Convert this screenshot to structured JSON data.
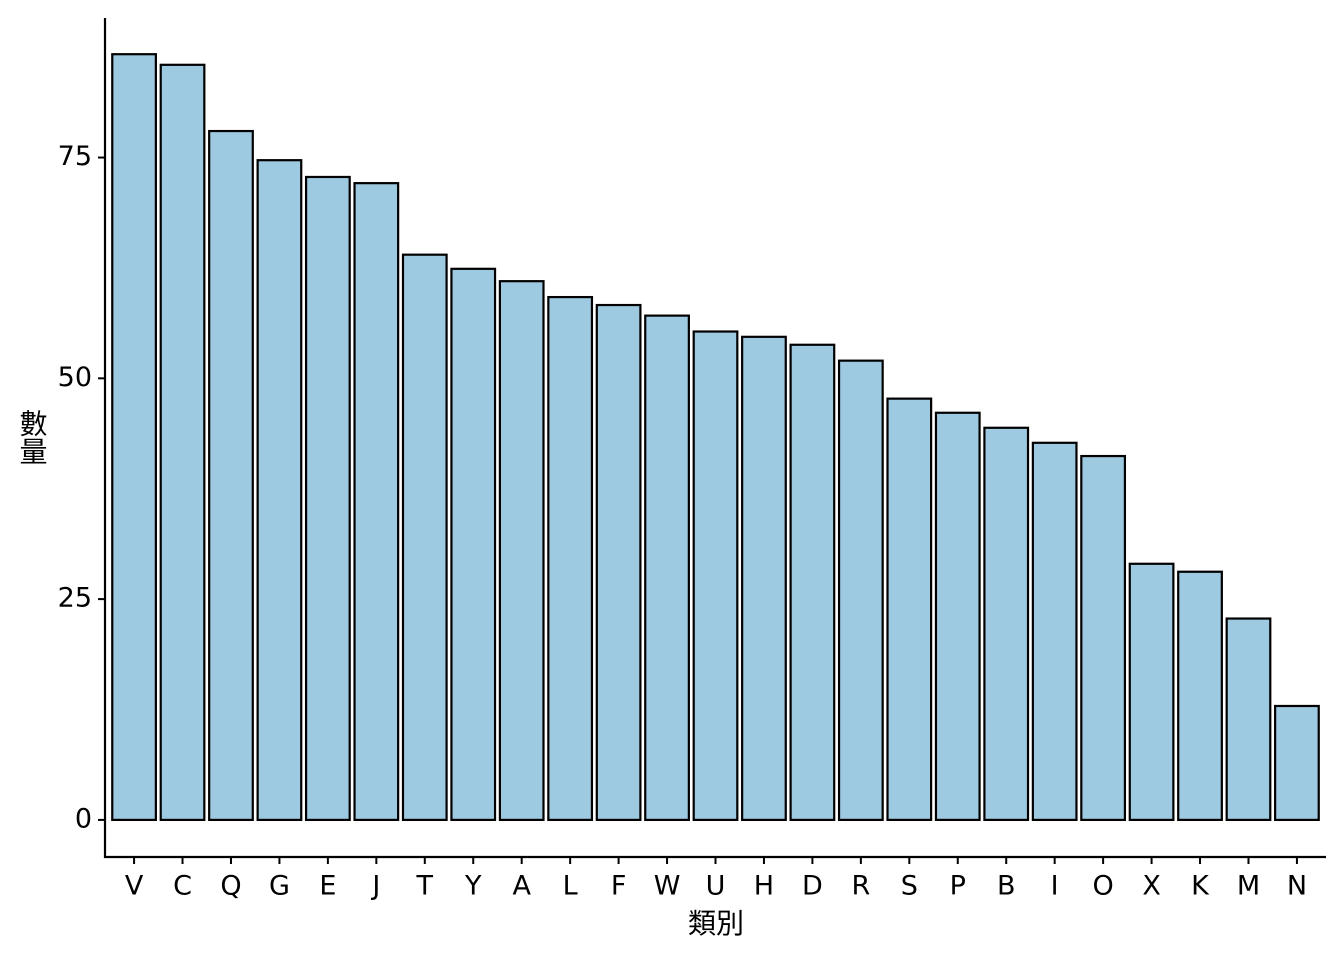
{
  "chart_data": {
    "type": "bar",
    "x_label": "類別",
    "y_label": "數量",
    "categories": [
      "V",
      "C",
      "Q",
      "G",
      "E",
      "J",
      "T",
      "Y",
      "A",
      "L",
      "F",
      "W",
      "U",
      "H",
      "D",
      "R",
      "S",
      "P",
      "B",
      "I",
      "O",
      "X",
      "K",
      "M",
      "N"
    ],
    "values": [
      86.7,
      85.5,
      78.0,
      74.7,
      72.8,
      72.1,
      64.0,
      62.4,
      61.0,
      59.2,
      58.3,
      57.1,
      55.3,
      54.7,
      53.8,
      52.0,
      47.7,
      46.1,
      44.4,
      42.7,
      41.2,
      29.0,
      28.1,
      22.8,
      12.9
    ],
    "color": "#9ecae1",
    "ylim": [
      -4.2,
      90.8
    ],
    "yticks": [
      0,
      25,
      50,
      75
    ],
    "grid": false
  }
}
